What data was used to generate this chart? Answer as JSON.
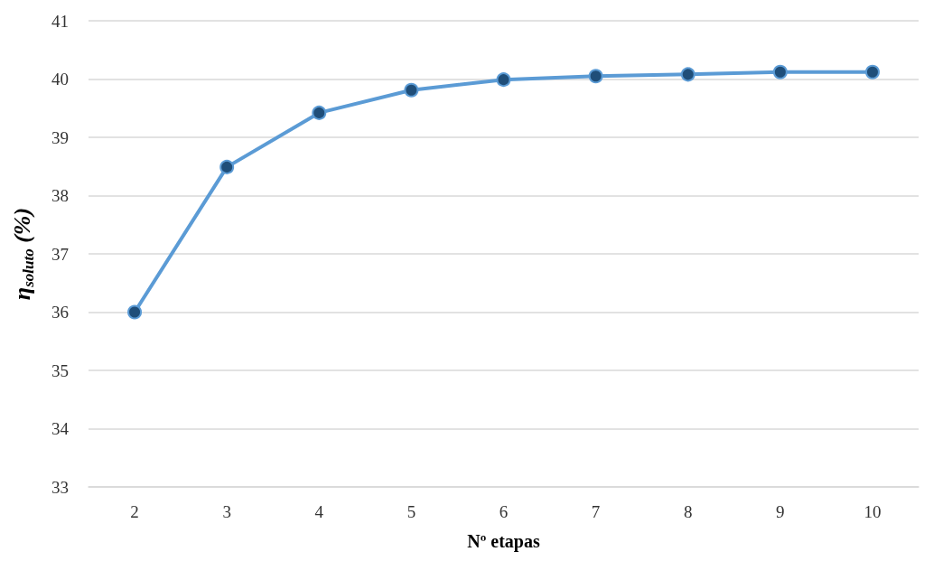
{
  "chart_data": {
    "type": "line",
    "xlabel": "Nº etapas",
    "ylabel": "η$_{soluto}$ (%)",
    "categories": [
      "2",
      "3",
      "4",
      "5",
      "6",
      "7",
      "8",
      "9",
      "10"
    ],
    "series": [
      {
        "color": "#5b9bd5",
        "values": [
          36.0,
          38.49,
          39.42,
          39.81,
          39.99,
          40.05,
          40.08,
          40.12,
          40.12
        ]
      }
    ],
    "ylim": [
      33,
      41
    ],
    "yticks": [
      33,
      34,
      35,
      36,
      37,
      38,
      39,
      40,
      41
    ],
    "grid": "y",
    "marker": "circle",
    "line_style": "solid"
  }
}
